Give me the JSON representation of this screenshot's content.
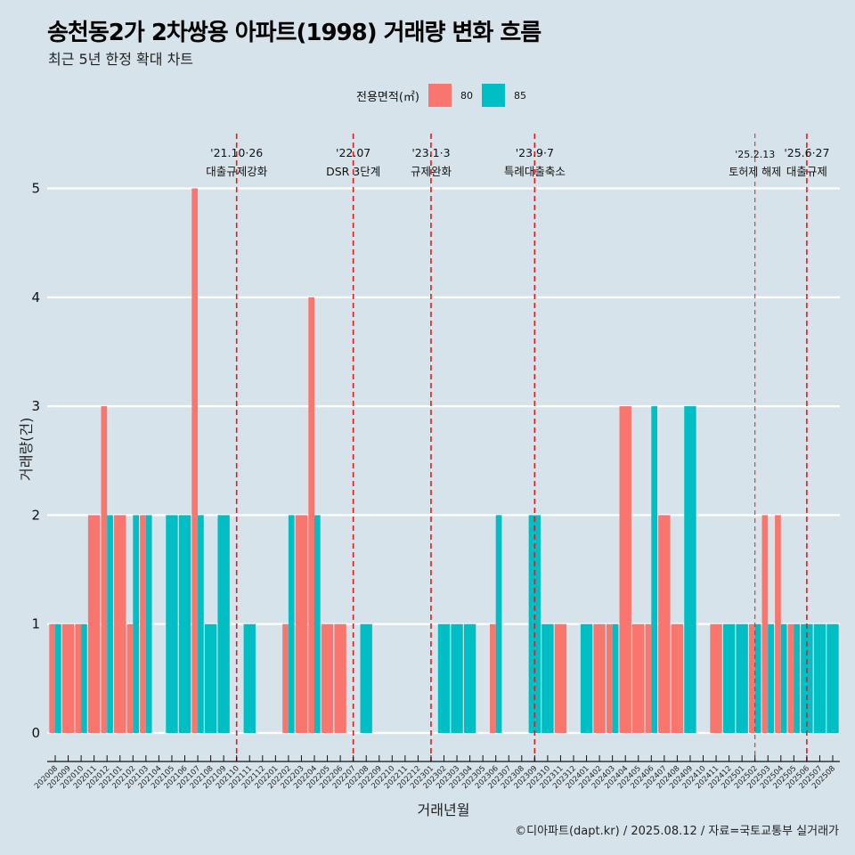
{
  "header": {
    "title": "송천동2가 2차쌍용 아파트(1998) 거래량 변화 흐름",
    "subtitle": "최근 5년 한정 확대 차트"
  },
  "legend": {
    "title": "전용면적(㎡)",
    "items": [
      {
        "label": "80",
        "color": "#f8766d"
      },
      {
        "label": "85",
        "color": "#00bfc4"
      }
    ]
  },
  "caption": "©디아파트(dapt.kr) / 2025.08.12 / 자료=국토교통부 실거래가",
  "chart_data": {
    "type": "bar",
    "title": "송천동2가 2차쌍용 아파트(1998) 거래량 변화 흐름",
    "subtitle": "최근 5년 한정 확대 차트",
    "xlabel": "거래년월",
    "ylabel": "거래량(건)",
    "ylim": [
      0,
      5
    ],
    "yticks": [
      0,
      1,
      2,
      3,
      4,
      5
    ],
    "grid": true,
    "legend_position": "top",
    "bar_mode": "dodge",
    "categories": [
      "202008",
      "202009",
      "202010",
      "202011",
      "202012",
      "202101",
      "202102",
      "202103",
      "202104",
      "202105",
      "202106",
      "202107",
      "202108",
      "202109",
      "202110",
      "202111",
      "202112",
      "202201",
      "202202",
      "202203",
      "202204",
      "202205",
      "202206",
      "202207",
      "202208",
      "202209",
      "202210",
      "202211",
      "202212",
      "202301",
      "202302",
      "202303",
      "202304",
      "202305",
      "202306",
      "202307",
      "202308",
      "202309",
      "202310",
      "202311",
      "202312",
      "202401",
      "202402",
      "202403",
      "202404",
      "202405",
      "202406",
      "202407",
      "202408",
      "202409",
      "202410",
      "202411",
      "202412",
      "202501",
      "202502",
      "202503",
      "202504",
      "202505",
      "202506",
      "202507",
      "202508"
    ],
    "series": [
      {
        "name": "80",
        "color": "#f8766d",
        "values": [
          1,
          1,
          1,
          2,
          3,
          2,
          1,
          2,
          0,
          0,
          0,
          5,
          0,
          0,
          0,
          0,
          0,
          0,
          1,
          2,
          4,
          1,
          1,
          0,
          0,
          0,
          0,
          0,
          0,
          0,
          0,
          0,
          0,
          0,
          1,
          0,
          0,
          0,
          0,
          1,
          0,
          0,
          1,
          1,
          3,
          1,
          1,
          2,
          1,
          0,
          0,
          1,
          0,
          0,
          1,
          2,
          2,
          1,
          0,
          0,
          0
        ]
      },
      {
        "name": "85",
        "color": "#00bfc4",
        "values": [
          1,
          0,
          1,
          0,
          2,
          0,
          2,
          2,
          0,
          2,
          2,
          2,
          1,
          2,
          0,
          1,
          0,
          0,
          2,
          0,
          2,
          0,
          0,
          0,
          1,
          0,
          0,
          0,
          0,
          0,
          1,
          1,
          1,
          0,
          2,
          0,
          0,
          2,
          1,
          0,
          0,
          1,
          0,
          1,
          0,
          0,
          3,
          0,
          0,
          3,
          0,
          0,
          1,
          1,
          1,
          1,
          1,
          1,
          1,
          1,
          1
        ]
      }
    ],
    "annotations": [
      {
        "x": "202110",
        "date": "'21.10·26",
        "label": "대출규제강화",
        "style": "major"
      },
      {
        "x": "202207",
        "date": "'22.07",
        "label": "DSR 3단계",
        "style": "major"
      },
      {
        "x": "202301",
        "date": "'23.1·3",
        "label": "규제완화",
        "style": "major"
      },
      {
        "x": "202309",
        "date": "'23.9·7",
        "label": "특례대출축소",
        "style": "major"
      },
      {
        "x": "202502",
        "date": "'25.2.13",
        "label": "토허제 해제",
        "style": "minor"
      },
      {
        "x": "202506",
        "date": "'25.6·27",
        "label": "대출규제",
        "style": "major"
      }
    ],
    "annotation_color": "#e41a1c"
  }
}
